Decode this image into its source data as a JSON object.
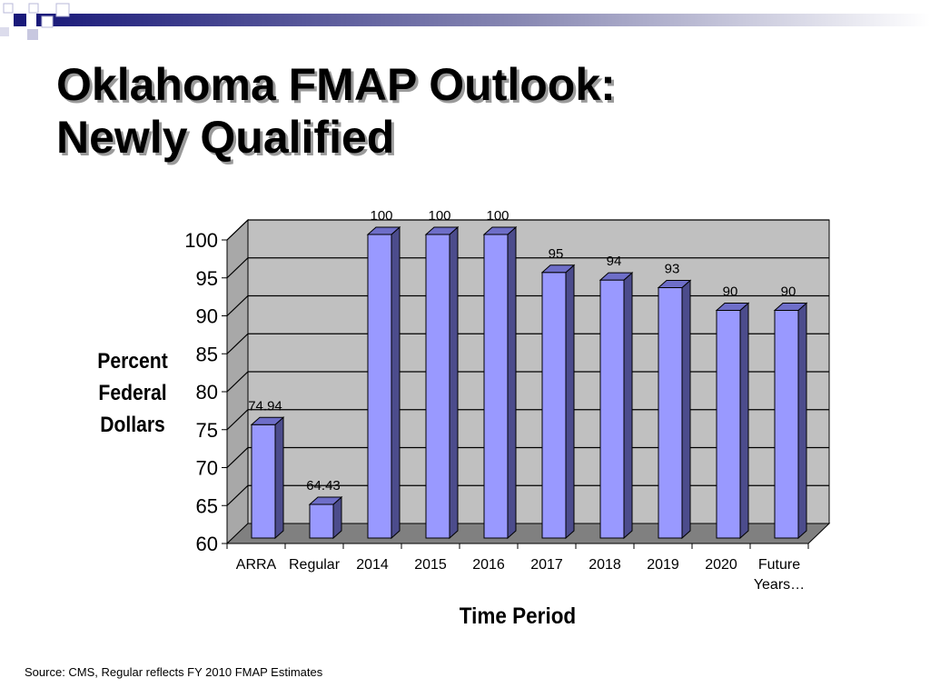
{
  "slide": {
    "title_line1": "Oklahoma FMAP Outlook:",
    "title_line2": "Newly Qualified",
    "source": "Source:  CMS, Regular reflects FY 2010 FMAP Estimates"
  },
  "chart_data": {
    "type": "bar",
    "title": "",
    "ylabel_lines": [
      "Percent",
      "Federal",
      "Dollars"
    ],
    "xlabel": "Time Period",
    "ylim": [
      60,
      100
    ],
    "yticks": [
      60,
      65,
      70,
      75,
      80,
      85,
      90,
      95,
      100
    ],
    "grid": true,
    "style": "3d-column",
    "categories": [
      "ARRA",
      "Regular",
      "2014",
      "2015",
      "2016",
      "2017",
      "2018",
      "2019",
      "2020",
      "Future Years…"
    ],
    "category_label_lines": [
      [
        "ARRA"
      ],
      [
        "Regular"
      ],
      [
        "2014"
      ],
      [
        "2015"
      ],
      [
        "2016"
      ],
      [
        "2017"
      ],
      [
        "2018"
      ],
      [
        "2019"
      ],
      [
        "2020"
      ],
      [
        "Future",
        "Years…"
      ]
    ],
    "values": [
      74.94,
      64.43,
      100,
      100,
      100,
      95,
      94,
      93,
      90,
      90
    ],
    "data_labels": [
      "74.94",
      "64.43",
      "100",
      "100",
      "100",
      "95",
      "94",
      "93",
      "90",
      "90"
    ]
  },
  "colors": {
    "bar_front": "#9999ff",
    "bar_side": "#4c4c8c",
    "bar_top": "#6e6ec8",
    "plot_wall": "#c0c0c0",
    "floor": "#808080"
  }
}
